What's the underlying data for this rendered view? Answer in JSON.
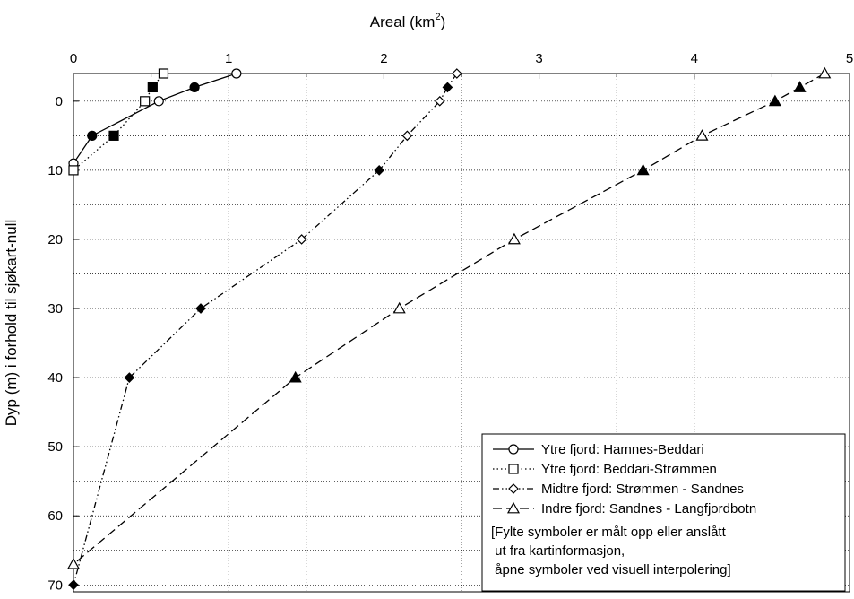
{
  "chart_data": {
    "type": "line",
    "xlabel": "Areal (km",
    "xlabel_sup": "2",
    "xlabel_close": ")",
    "ylabel": "Dyp (m) i forhold til sjøkart-null",
    "x_ticks": [
      "0",
      "1",
      "2",
      "3",
      "4",
      "5"
    ],
    "y_ticks": [
      "0",
      "10",
      "20",
      "30",
      "40",
      "50",
      "60",
      "70"
    ],
    "xlim": [
      0,
      5
    ],
    "ylim": [
      -4,
      71
    ],
    "y_inverted": true,
    "x_axis_position": "top",
    "grid": true,
    "legend_position": "bottom-right",
    "series": [
      {
        "name": "Ytre fjord: Hamnes-Beddari",
        "marker": "circle",
        "line": "solid",
        "points": [
          {
            "x": 1.05,
            "y": -4,
            "filled": false
          },
          {
            "x": 0.78,
            "y": -2,
            "filled": true
          },
          {
            "x": 0.55,
            "y": 0,
            "filled": false
          },
          {
            "x": 0.12,
            "y": 5,
            "filled": true
          },
          {
            "x": 0.0,
            "y": 9,
            "filled": false
          }
        ]
      },
      {
        "name": "Ytre fjord: Beddari-Strømmen",
        "marker": "square",
        "line": "dotted",
        "points": [
          {
            "x": 0.58,
            "y": -4,
            "filled": false
          },
          {
            "x": 0.51,
            "y": -2,
            "filled": true
          },
          {
            "x": 0.46,
            "y": 0,
            "filled": false
          },
          {
            "x": 0.26,
            "y": 5,
            "filled": true
          },
          {
            "x": 0.0,
            "y": 10,
            "filled": false
          }
        ]
      },
      {
        "name": "Midtre fjord: Strømmen - Sandnes",
        "marker": "diamond",
        "line": "dashdotdot",
        "points": [
          {
            "x": 2.47,
            "y": -4,
            "filled": false
          },
          {
            "x": 2.41,
            "y": -2,
            "filled": true
          },
          {
            "x": 2.36,
            "y": 0,
            "filled": false
          },
          {
            "x": 2.15,
            "y": 5,
            "filled": false
          },
          {
            "x": 1.97,
            "y": 10,
            "filled": true
          },
          {
            "x": 1.47,
            "y": 20,
            "filled": false
          },
          {
            "x": 0.82,
            "y": 30,
            "filled": true
          },
          {
            "x": 0.36,
            "y": 40,
            "filled": true
          },
          {
            "x": 0.0,
            "y": 70,
            "filled": true
          }
        ]
      },
      {
        "name": "Indre fjord: Sandnes - Langfjordbotn",
        "marker": "triangle",
        "line": "dashed",
        "points": [
          {
            "x": 4.84,
            "y": -4,
            "filled": false
          },
          {
            "x": 4.68,
            "y": -2,
            "filled": true
          },
          {
            "x": 4.52,
            "y": 0,
            "filled": true
          },
          {
            "x": 4.05,
            "y": 5,
            "filled": false
          },
          {
            "x": 3.67,
            "y": 10,
            "filled": true
          },
          {
            "x": 2.84,
            "y": 20,
            "filled": false
          },
          {
            "x": 2.1,
            "y": 30,
            "filled": false
          },
          {
            "x": 1.43,
            "y": 40,
            "filled": true
          },
          {
            "x": 0.0,
            "y": 67,
            "filled": false
          }
        ]
      }
    ],
    "legend_note": [
      "[Fylte symboler er målt opp eller anslått",
      " ut fra kartinformasjon,",
      " åpne symboler ved visuell interpolering]"
    ]
  }
}
